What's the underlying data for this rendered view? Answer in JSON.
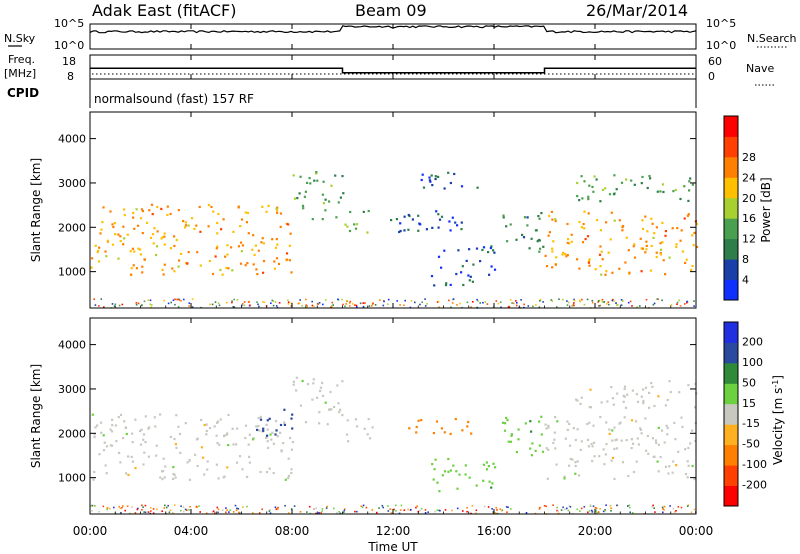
{
  "header": {
    "station": "Adak East (fitACF)",
    "beam": "Beam 09",
    "date": "26/Mar/2014"
  },
  "top_panels": {
    "nsky": {
      "label": "N.Sky",
      "left_ticks": [
        "10^5",
        "10^0"
      ],
      "right_ticks": [
        "10^5",
        "10^0"
      ],
      "right_label": "N.Search"
    },
    "freq": {
      "label": "Freq.",
      "unit": "[MHz]",
      "left_ticks": [
        "18",
        "8"
      ],
      "right_ticks": [
        "60",
        "0"
      ],
      "right_label": "Nave"
    },
    "cpid": {
      "label": "CPID",
      "text": "normalsound (fast) 157 RF"
    }
  },
  "colors": {
    "power_scale": [
      "#1030ff",
      "#1a3fa8",
      "#2e7d4a",
      "#4aa050",
      "#a8d030",
      "#ffc000",
      "#ff8000",
      "#ff4000",
      "#ff0000"
    ],
    "velocity_scale": [
      "#2030e0",
      "#2a4aa0",
      "#2f8a3a",
      "#6cd040",
      "#c8c8c0",
      "#ffb020",
      "#ff8000",
      "#ff4000",
      "#ff0000"
    ]
  },
  "chart_data": [
    {
      "type": "line",
      "title": "N.Sky / N.Search",
      "xlabel": "",
      "ylabel": "N.Sky",
      "x": [
        "00:00",
        "04:00",
        "08:00",
        "10:00",
        "12:00",
        "16:00",
        "18:00",
        "20:00",
        "00:00"
      ],
      "series": [
        {
          "name": "N.Sky",
          "values": [
            3000,
            3000,
            4000,
            30000,
            30000,
            30000,
            3000,
            3000,
            3000
          ]
        }
      ],
      "scale": "log",
      "ylim": [
        1,
        100000
      ]
    },
    {
      "type": "line",
      "title": "Freq. / Nave",
      "ylabel": "Freq. [MHz]",
      "x": [
        "00:00",
        "10:00",
        "10:00",
        "18:00",
        "18:00",
        "00:00"
      ],
      "series": [
        {
          "name": "Freq.",
          "values": [
            12.5,
            12.5,
            10.6,
            10.6,
            12.5,
            12.5
          ]
        }
      ],
      "ylim": [
        8,
        18
      ],
      "y2lim": [
        0,
        60
      ]
    },
    {
      "type": "heatmap",
      "title": "Power",
      "xlabel": "",
      "ylabel": "Slant Range [km]",
      "y_ticks": [
        1000,
        2000,
        3000,
        4000
      ],
      "ylim": [
        180,
        4600
      ],
      "colorbar": {
        "label": "Power [dB]",
        "ticks": [
          4,
          8,
          12,
          16,
          20,
          24,
          28
        ]
      },
      "regions": [
        {
          "t0": 0.0,
          "t1": 8.0,
          "r0": 950,
          "r1": 2550,
          "level": 24
        },
        {
          "t0": 8.0,
          "t1": 10.0,
          "r0": 2200,
          "r1": 3300,
          "level": 14
        },
        {
          "t0": 10.0,
          "t1": 11.2,
          "r0": 1800,
          "r1": 2400,
          "level": 16
        },
        {
          "t0": 11.2,
          "t1": 15.2,
          "r0": 1900,
          "r1": 2400,
          "level": 6
        },
        {
          "t0": 12.5,
          "t1": 15.5,
          "r0": 2900,
          "r1": 3300,
          "level": 6
        },
        {
          "t0": 13.5,
          "t1": 16.0,
          "r0": 700,
          "r1": 1600,
          "level": 6
        },
        {
          "t0": 16.3,
          "t1": 18.0,
          "r0": 1400,
          "r1": 2400,
          "level": 10
        },
        {
          "t0": 18.0,
          "t1": 24.0,
          "r0": 950,
          "r1": 2400,
          "level": 24
        },
        {
          "t0": 19.0,
          "t1": 24.0,
          "r0": 2600,
          "r1": 3200,
          "level": 14
        }
      ]
    },
    {
      "type": "heatmap",
      "title": "Velocity",
      "xlabel": "Time UT",
      "ylabel": "Slant Range [km]",
      "x_ticks": [
        "00:00",
        "04:00",
        "08:00",
        "12:00",
        "16:00",
        "20:00",
        "00:00"
      ],
      "y_ticks": [
        1000,
        2000,
        3000,
        4000
      ],
      "ylim": [
        180,
        4600
      ],
      "colorbar": {
        "label": "Velocity [m s^-1]",
        "ticks": [
          200,
          100,
          50,
          15,
          -15,
          -50,
          -100,
          -200
        ]
      },
      "regions": [
        {
          "t0": 0.0,
          "t1": 8.0,
          "r0": 950,
          "r1": 2450,
          "level": 0
        },
        {
          "t0": 6.5,
          "t1": 8.0,
          "r0": 1900,
          "r1": 2600,
          "level": 150
        },
        {
          "t0": 8.0,
          "t1": 10.0,
          "r0": 2200,
          "r1": 3300,
          "level": 0
        },
        {
          "t0": 10.0,
          "t1": 11.2,
          "r0": 1800,
          "r1": 2400,
          "level": 0
        },
        {
          "t0": 12.5,
          "t1": 15.2,
          "r0": 2000,
          "r1": 2400,
          "level": -80
        },
        {
          "t0": 13.5,
          "t1": 16.0,
          "r0": 700,
          "r1": 1500,
          "level": 40
        },
        {
          "t0": 16.3,
          "t1": 18.0,
          "r0": 1400,
          "r1": 2400,
          "level": 40
        },
        {
          "t0": 18.0,
          "t1": 24.0,
          "r0": 950,
          "r1": 2400,
          "level": 0
        },
        {
          "t0": 19.0,
          "t1": 24.0,
          "r0": 2600,
          "r1": 3200,
          "level": 0
        }
      ]
    }
  ]
}
